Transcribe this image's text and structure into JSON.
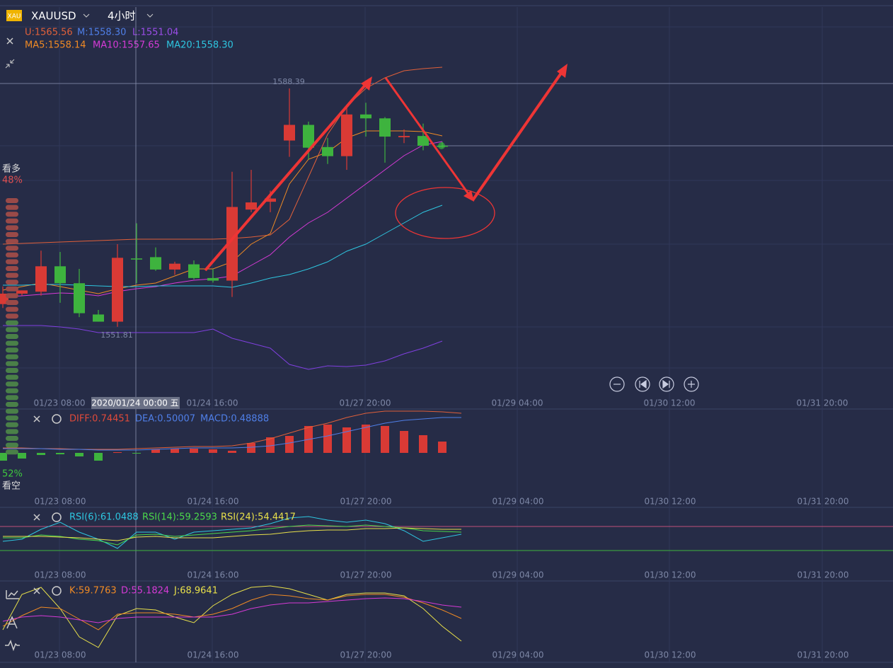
{
  "header": {
    "icon": "XAU",
    "symbol": "XAUUSD",
    "interval": "4小时"
  },
  "main_panel": {
    "boll": {
      "upper": "U:1565.56",
      "middle": "M:1558.30",
      "lower": "L:1551.04"
    },
    "ma": {
      "ma5": "MA5:1558.14",
      "ma10": "MA10:1557.65",
      "ma20": "MA20:1558.30"
    },
    "ylim": [
      1541.15,
      1600.88
    ],
    "candles": [
      [
        1555.3,
        1558.0,
        1554.7,
        1556.9
      ],
      [
        1556.9,
        1557.4,
        1556.6,
        1557.4
      ],
      [
        1557.2,
        1563.5,
        1556.6,
        1561.1
      ],
      [
        1561.1,
        1563.3,
        1555.5,
        1558.5
      ],
      [
        1558.5,
        1560.7,
        1553.3,
        1553.9
      ],
      [
        1553.7,
        1554.4,
        1552.6,
        1552.6
      ],
      [
        1552.6,
        1564.5,
        1551.81,
        1562.4
      ],
      [
        1562.3,
        1567.7,
        1558.5,
        1562.2
      ],
      [
        1562.5,
        1564.0,
        1560.4,
        1560.6
      ],
      [
        1560.6,
        1561.8,
        1559.8,
        1561.5
      ],
      [
        1561.4,
        1562.0,
        1559.1,
        1559.3
      ],
      [
        1559.3,
        1560.7,
        1558.6,
        1558.9
      ],
      [
        1558.9,
        1575.6,
        1556.4,
        1570.2
      ],
      [
        1569.8,
        1575.9,
        1569.4,
        1570.9
      ],
      [
        1571.0,
        1572.7,
        1569.4,
        1571.5
      ],
      [
        1580.4,
        1588.39,
        1577.9,
        1582.8
      ],
      [
        1582.8,
        1583.3,
        1577.5,
        1579.3
      ],
      [
        1579.4,
        1580.8,
        1576.8,
        1578.0
      ],
      [
        1578.0,
        1585.7,
        1575.9,
        1584.4
      ],
      [
        1584.4,
        1586.2,
        1581.0,
        1583.8
      ],
      [
        1583.8,
        1584.0,
        1577.0,
        1581.0
      ],
      [
        1580.9,
        1582.1,
        1580.0,
        1581.1
      ],
      [
        1581.1,
        1583.0,
        1578.9,
        1579.6
      ],
      [
        1579.6,
        1580.2,
        1579.3,
        1579.5
      ]
    ],
    "crosshair_label": "2020/01/24 00:00 五"
  },
  "sentiment": {
    "bull_label": "看多",
    "bull_pct": "48%",
    "bear_pct": "52%",
    "bear_label": "看空"
  },
  "x_axis": [
    "01/23 08:00",
    "01/24 16:00",
    "01/27 20:00",
    "01/29 04:00",
    "01/30 12:00",
    "01/31 20:00"
  ],
  "macd_panel": {
    "diff": "DIFF:0.74451",
    "dea": "DEA:0.50007",
    "macd": "MACD:0.48888"
  },
  "rsi_panel": {
    "rsi6": "RSI(6):61.0488",
    "rsi14": "RSI(14):59.2593",
    "rsi24": "RSI(24):54.4417"
  },
  "kdj_panel": {
    "k": "K:59.7763",
    "d": "D:55.1824",
    "j": "J:68.9641"
  }
}
